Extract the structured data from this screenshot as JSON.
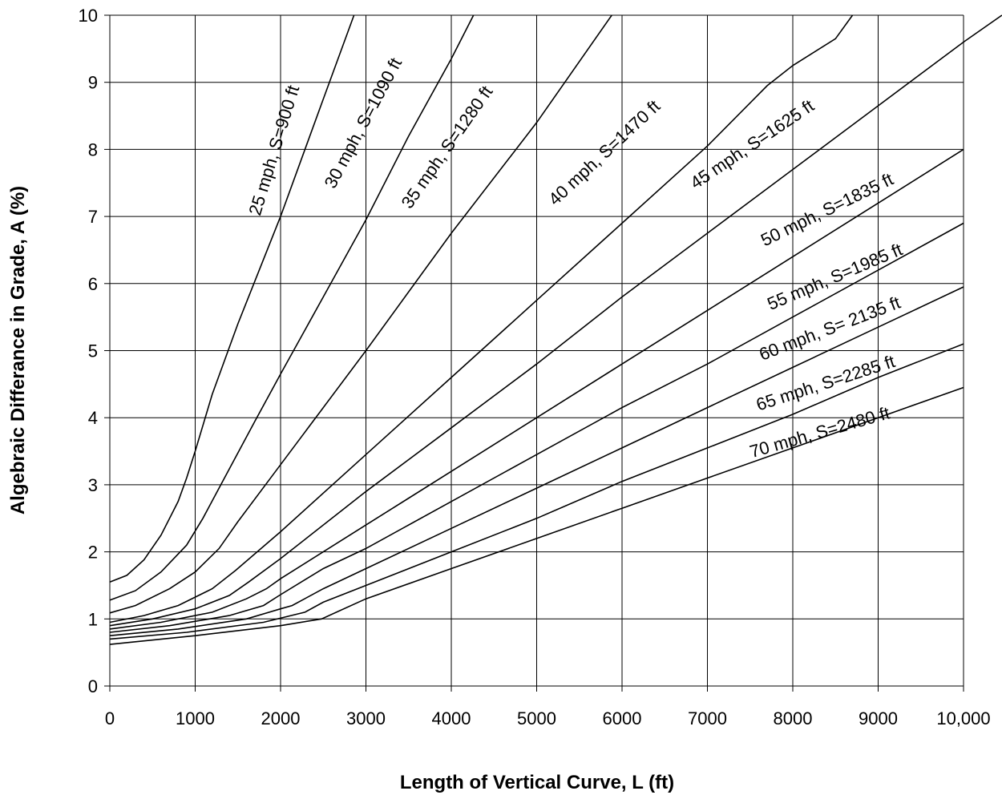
{
  "chart_data": {
    "type": "line",
    "title": "",
    "xlabel": "Length of Vertical Curve, L (ft)",
    "ylabel": "Algebraic Differance in Grade, A (%)",
    "xlim": [
      0,
      10000
    ],
    "ylim": [
      0,
      10
    ],
    "grid": true,
    "x_ticks": [
      {
        "value": 0,
        "label": "0"
      },
      {
        "value": 1000,
        "label": "1000"
      },
      {
        "value": 2000,
        "label": "2000"
      },
      {
        "value": 3000,
        "label": "3000"
      },
      {
        "value": 4000,
        "label": "4000"
      },
      {
        "value": 5000,
        "label": "5000"
      },
      {
        "value": 6000,
        "label": "6000"
      },
      {
        "value": 7000,
        "label": "7000"
      },
      {
        "value": 8000,
        "label": "8000"
      },
      {
        "value": 9000,
        "label": "9000"
      },
      {
        "value": 10000,
        "label": "10,000"
      }
    ],
    "y_ticks": [
      {
        "value": 0,
        "label": "0"
      },
      {
        "value": 1,
        "label": "1"
      },
      {
        "value": 2,
        "label": "2"
      },
      {
        "value": 3,
        "label": "3"
      },
      {
        "value": 4,
        "label": "4"
      },
      {
        "value": 5,
        "label": "5"
      },
      {
        "value": 6,
        "label": "6"
      },
      {
        "value": 7,
        "label": "7"
      },
      {
        "value": 8,
        "label": "8"
      },
      {
        "value": 9,
        "label": "9"
      },
      {
        "value": 10,
        "label": "10"
      }
    ],
    "series": [
      {
        "name": "25 mph, S=900 ft",
        "points": [
          [
            0,
            1.55
          ],
          [
            200,
            1.65
          ],
          [
            400,
            1.88
          ],
          [
            600,
            2.25
          ],
          [
            800,
            2.75
          ],
          [
            900,
            3.1
          ],
          [
            1000,
            3.5
          ],
          [
            1200,
            4.35
          ],
          [
            1500,
            5.4
          ],
          [
            2000,
            7.0
          ],
          [
            2500,
            8.75
          ],
          [
            2860,
            10.0
          ]
        ]
      },
      {
        "name": "30 mph, S=1090 ft",
        "points": [
          [
            0,
            1.28
          ],
          [
            300,
            1.42
          ],
          [
            600,
            1.7
          ],
          [
            900,
            2.1
          ],
          [
            1090,
            2.5
          ],
          [
            1300,
            3.0
          ],
          [
            1700,
            3.95
          ],
          [
            2000,
            4.65
          ],
          [
            2500,
            5.8
          ],
          [
            3000,
            6.95
          ],
          [
            3500,
            8.2
          ],
          [
            4000,
            9.35
          ],
          [
            4260,
            10.0
          ]
        ]
      },
      {
        "name": "35 mph, S=1280 ft",
        "points": [
          [
            0,
            1.09
          ],
          [
            300,
            1.2
          ],
          [
            700,
            1.45
          ],
          [
            1000,
            1.7
          ],
          [
            1280,
            2.05
          ],
          [
            1500,
            2.45
          ],
          [
            2000,
            3.3
          ],
          [
            2500,
            4.15
          ],
          [
            3000,
            5.0
          ],
          [
            4000,
            6.75
          ],
          [
            5000,
            8.4
          ],
          [
            5880,
            10.0
          ]
        ]
      },
      {
        "name": "40 mph, S=1470 ft",
        "points": [
          [
            0,
            0.95
          ],
          [
            400,
            1.05
          ],
          [
            800,
            1.2
          ],
          [
            1200,
            1.45
          ],
          [
            1470,
            1.72
          ],
          [
            2000,
            2.3
          ],
          [
            3000,
            3.45
          ],
          [
            4000,
            4.6
          ],
          [
            5000,
            5.75
          ],
          [
            6000,
            6.9
          ],
          [
            7000,
            8.05
          ],
          [
            7700,
            8.95
          ],
          [
            8000,
            9.25
          ],
          [
            8500,
            9.65
          ],
          [
            8700,
            10.0
          ]
        ]
      },
      {
        "name": "45 mph, S=1625 ft",
        "points": [
          [
            0,
            0.9
          ],
          [
            500,
            1.0
          ],
          [
            1000,
            1.15
          ],
          [
            1400,
            1.35
          ],
          [
            1625,
            1.55
          ],
          [
            2000,
            1.9
          ],
          [
            3000,
            2.9
          ],
          [
            4000,
            3.85
          ],
          [
            5000,
            4.8
          ],
          [
            6000,
            5.8
          ],
          [
            7000,
            6.75
          ],
          [
            8000,
            7.7
          ],
          [
            9000,
            8.65
          ],
          [
            10000,
            9.6
          ],
          [
            10450,
            10.0
          ]
        ]
      },
      {
        "name": "50 mph, S=1835 ft",
        "points": [
          [
            0,
            0.85
          ],
          [
            600,
            0.95
          ],
          [
            1200,
            1.1
          ],
          [
            1600,
            1.3
          ],
          [
            1835,
            1.45
          ],
          [
            2000,
            1.6
          ],
          [
            3000,
            2.4
          ],
          [
            4000,
            3.2
          ],
          [
            5000,
            4.0
          ],
          [
            6000,
            4.8
          ],
          [
            7000,
            5.6
          ],
          [
            8000,
            6.4
          ],
          [
            9000,
            7.2
          ],
          [
            10000,
            8.0
          ]
        ]
      },
      {
        "name": "55 mph, S=1985 ft",
        "points": [
          [
            0,
            0.8
          ],
          [
            700,
            0.9
          ],
          [
            1400,
            1.05
          ],
          [
            1800,
            1.2
          ],
          [
            1985,
            1.35
          ],
          [
            2500,
            1.75
          ],
          [
            3000,
            2.05
          ],
          [
            4000,
            2.75
          ],
          [
            5000,
            3.45
          ],
          [
            6000,
            4.15
          ],
          [
            7000,
            4.8
          ],
          [
            8000,
            5.5
          ],
          [
            9000,
            6.2
          ],
          [
            10000,
            6.9
          ]
        ]
      },
      {
        "name": "60 mph, S= 2135 ft",
        "points": [
          [
            0,
            0.75
          ],
          [
            800,
            0.85
          ],
          [
            1600,
            1.0
          ],
          [
            2000,
            1.15
          ],
          [
            2135,
            1.2
          ],
          [
            2500,
            1.45
          ],
          [
            3000,
            1.75
          ],
          [
            4000,
            2.35
          ],
          [
            5000,
            2.95
          ],
          [
            6000,
            3.55
          ],
          [
            7000,
            4.15
          ],
          [
            8000,
            4.75
          ],
          [
            9000,
            5.35
          ],
          [
            10000,
            5.95
          ]
        ]
      },
      {
        "name": "65 mph, S=2285 ft",
        "points": [
          [
            0,
            0.7
          ],
          [
            900,
            0.8
          ],
          [
            1800,
            0.95
          ],
          [
            2285,
            1.1
          ],
          [
            2500,
            1.25
          ],
          [
            3000,
            1.5
          ],
          [
            4000,
            2.0
          ],
          [
            5000,
            2.5
          ],
          [
            6000,
            3.05
          ],
          [
            7000,
            3.55
          ],
          [
            8000,
            4.05
          ],
          [
            9000,
            4.6
          ],
          [
            10000,
            5.1
          ]
        ]
      },
      {
        "name": "70 mph, S=2480 ft",
        "points": [
          [
            0,
            0.62
          ],
          [
            1000,
            0.75
          ],
          [
            2000,
            0.9
          ],
          [
            2480,
            1.0
          ],
          [
            3000,
            1.3
          ],
          [
            4000,
            1.75
          ],
          [
            5000,
            2.2
          ],
          [
            6000,
            2.65
          ],
          [
            7000,
            3.1
          ],
          [
            8000,
            3.55
          ],
          [
            9000,
            4.0
          ],
          [
            10000,
            4.45
          ]
        ]
      }
    ]
  }
}
